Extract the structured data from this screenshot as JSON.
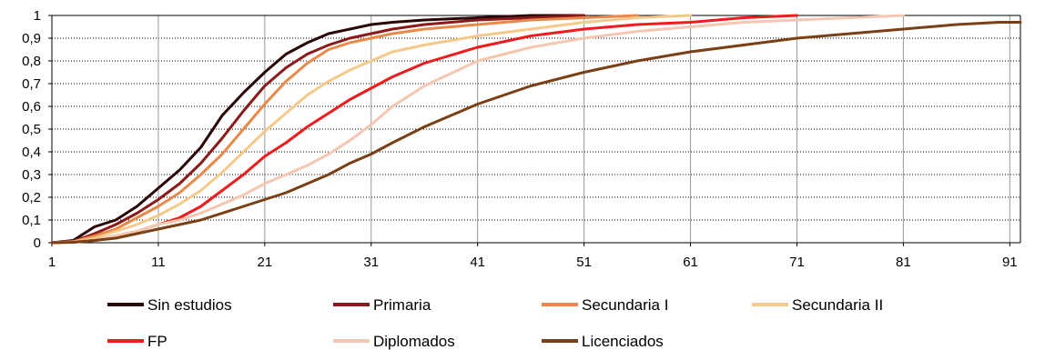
{
  "chart_data": {
    "type": "line",
    "title": "",
    "xlabel": "",
    "ylabel": "",
    "xlim": [
      1,
      92
    ],
    "ylim": [
      0,
      1
    ],
    "x_ticks": [
      1,
      11,
      21,
      31,
      41,
      51,
      61,
      71,
      81,
      91
    ],
    "y_ticks": [
      0,
      0.1,
      0.2,
      0.3,
      0.4,
      0.5,
      0.6,
      0.7,
      0.8,
      0.9,
      1
    ],
    "y_tick_labels": [
      "0",
      "0,1",
      "0,2",
      "0,3",
      "0,4",
      "0,5",
      "0,6",
      "0,7",
      "0,8",
      "0,9",
      "1"
    ],
    "grid": {
      "horizontal": "dotted",
      "vertical": "solid"
    },
    "legend_position": "bottom",
    "series": [
      {
        "name": "Sin estudios",
        "color": "#2b0606",
        "x": [
          1,
          3,
          5,
          7,
          9,
          11,
          13,
          15,
          17,
          19,
          21,
          23,
          25,
          27,
          29,
          31,
          33,
          36,
          41,
          46,
          51
        ],
        "y": [
          0,
          0.01,
          0.07,
          0.1,
          0.16,
          0.24,
          0.32,
          0.42,
          0.56,
          0.66,
          0.75,
          0.83,
          0.88,
          0.92,
          0.94,
          0.96,
          0.97,
          0.98,
          0.99,
          1.0,
          1.0
        ]
      },
      {
        "name": "Primaria",
        "color": "#8b1a1a",
        "x": [
          1,
          3,
          5,
          7,
          9,
          11,
          13,
          15,
          17,
          19,
          21,
          23,
          25,
          27,
          29,
          31,
          33,
          36,
          41,
          46,
          51
        ],
        "y": [
          0,
          0.005,
          0.04,
          0.08,
          0.13,
          0.19,
          0.26,
          0.35,
          0.46,
          0.58,
          0.69,
          0.77,
          0.83,
          0.87,
          0.9,
          0.92,
          0.94,
          0.96,
          0.98,
          0.99,
          1.0
        ]
      },
      {
        "name": "Secundaria I",
        "color": "#e8894a",
        "x": [
          1,
          3,
          5,
          7,
          9,
          11,
          13,
          15,
          17,
          19,
          21,
          23,
          25,
          27,
          29,
          31,
          33,
          36,
          41,
          46,
          51,
          56
        ],
        "y": [
          0,
          0.005,
          0.03,
          0.06,
          0.11,
          0.16,
          0.22,
          0.3,
          0.39,
          0.5,
          0.61,
          0.71,
          0.79,
          0.85,
          0.88,
          0.9,
          0.92,
          0.94,
          0.96,
          0.98,
          0.99,
          1.0
        ]
      },
      {
        "name": "Secundaria II",
        "color": "#f5c98a",
        "x": [
          1,
          3,
          5,
          7,
          9,
          11,
          13,
          15,
          17,
          19,
          21,
          23,
          25,
          27,
          29,
          31,
          33,
          36,
          41,
          46,
          51,
          56,
          61
        ],
        "y": [
          0,
          0.004,
          0.02,
          0.05,
          0.08,
          0.12,
          0.17,
          0.23,
          0.31,
          0.4,
          0.49,
          0.57,
          0.65,
          0.71,
          0.76,
          0.8,
          0.84,
          0.87,
          0.91,
          0.94,
          0.97,
          0.99,
          1.0
        ]
      },
      {
        "name": "FP",
        "color": "#ee1c1c",
        "x": [
          1,
          3,
          5,
          7,
          9,
          11,
          13,
          15,
          17,
          19,
          21,
          23,
          25,
          27,
          29,
          31,
          33,
          36,
          41,
          46,
          51,
          56,
          61,
          66,
          71
        ],
        "y": [
          0,
          0.003,
          0.01,
          0.03,
          0.05,
          0.08,
          0.11,
          0.16,
          0.23,
          0.3,
          0.38,
          0.44,
          0.51,
          0.57,
          0.63,
          0.68,
          0.73,
          0.79,
          0.86,
          0.91,
          0.94,
          0.96,
          0.97,
          0.99,
          1.0
        ]
      },
      {
        "name": "Diplomados",
        "color": "#f5c6b0",
        "x": [
          1,
          3,
          5,
          7,
          9,
          11,
          13,
          15,
          17,
          19,
          21,
          23,
          25,
          27,
          29,
          31,
          33,
          36,
          41,
          46,
          51,
          56,
          61,
          66,
          71,
          76,
          81
        ],
        "y": [
          0,
          0.003,
          0.01,
          0.03,
          0.05,
          0.08,
          0.1,
          0.13,
          0.17,
          0.21,
          0.26,
          0.3,
          0.34,
          0.39,
          0.45,
          0.52,
          0.6,
          0.69,
          0.8,
          0.86,
          0.9,
          0.93,
          0.95,
          0.97,
          0.98,
          0.99,
          1.0
        ]
      },
      {
        "name": "Licenciados",
        "color": "#7b3f16",
        "x": [
          1,
          3,
          5,
          7,
          9,
          11,
          13,
          15,
          17,
          19,
          21,
          23,
          25,
          27,
          29,
          31,
          33,
          36,
          41,
          46,
          51,
          56,
          61,
          66,
          71,
          76,
          81,
          86,
          90,
          92
        ],
        "y": [
          0,
          0.002,
          0.01,
          0.02,
          0.04,
          0.06,
          0.08,
          0.1,
          0.13,
          0.16,
          0.19,
          0.22,
          0.26,
          0.3,
          0.35,
          0.39,
          0.44,
          0.51,
          0.61,
          0.69,
          0.75,
          0.8,
          0.84,
          0.87,
          0.9,
          0.92,
          0.94,
          0.96,
          0.97,
          0.97
        ]
      }
    ]
  }
}
